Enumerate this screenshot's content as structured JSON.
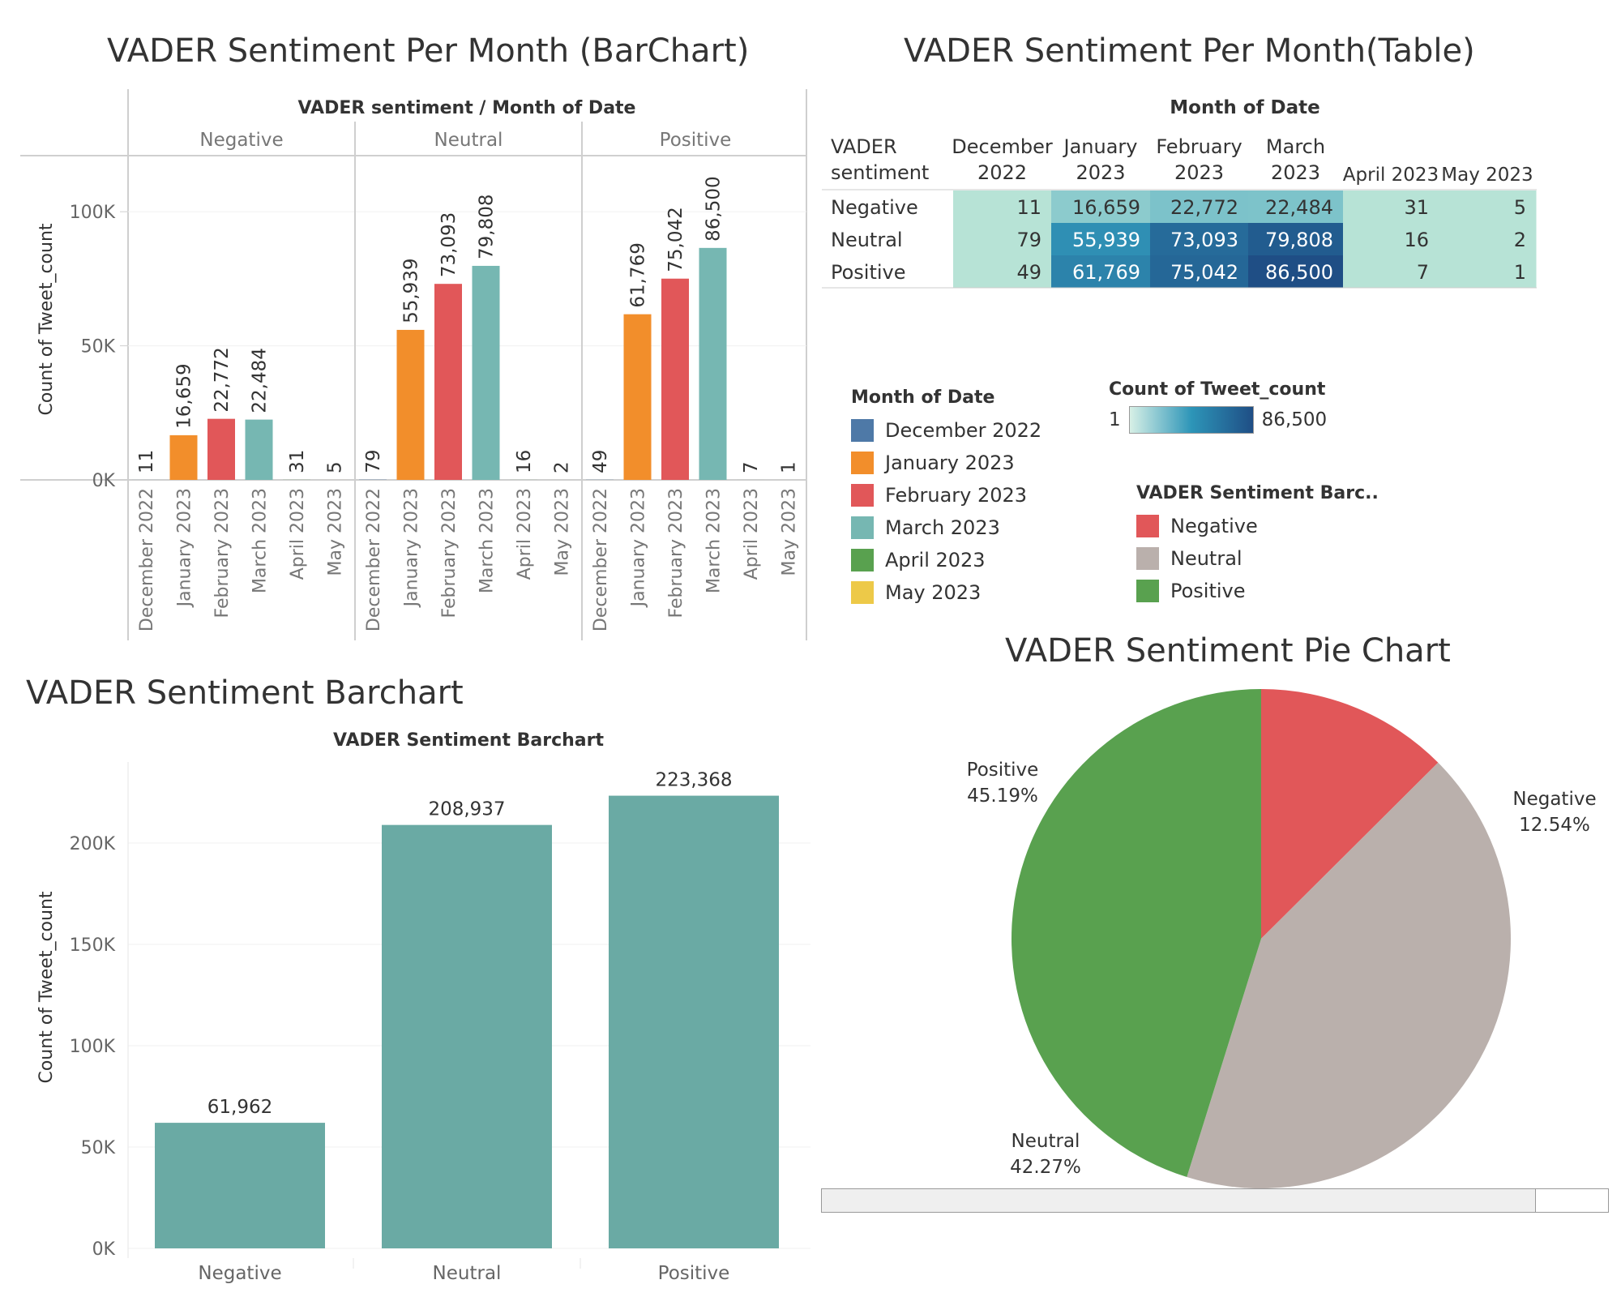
{
  "titles": {
    "monthly_bar": "VADER Sentiment Per Month (BarChart)",
    "monthly_table": "VADER Sentiment Per Month(Table)",
    "total_bar": "VADER Sentiment Barchart",
    "pie": "VADER Sentiment Pie Chart"
  },
  "colors": {
    "December 2022": "#4e79a7",
    "January 2023": "#f28e2b",
    "February 2023": "#e15759",
    "March 2023": "#76b7b2",
    "April 2023": "#59a14f",
    "May 2023": "#edc948",
    "Negative": "#e15759",
    "Neutral": "#bab0ac",
    "Positive": "#59a14f",
    "total_bar": "#6aaaa4",
    "heat_low": "#b7e3d6",
    "heat_high": "#1f4e85"
  },
  "legends": {
    "month_title": "Month of Date",
    "months": [
      "December 2022",
      "January 2023",
      "February 2023",
      "March 2023",
      "April 2023",
      "May 2023"
    ],
    "count_title": "Count of Tweet_count",
    "count_min": "1",
    "count_max": "86,500",
    "sentiment_title": "VADER Sentiment Barc..",
    "sentiments": [
      "Negative",
      "Neutral",
      "Positive"
    ]
  },
  "chart_data": [
    {
      "type": "bar",
      "title": "VADER Sentiment Per Month (BarChart)",
      "header": "VADER sentiment  /  Month of Date",
      "ylabel": "Count of Tweet_count",
      "ylim": [
        0,
        120000
      ],
      "yticks": [
        0,
        50000,
        100000
      ],
      "ytick_labels": [
        "0K",
        "50K",
        "100K"
      ],
      "panels": [
        "Negative",
        "Neutral",
        "Positive"
      ],
      "categories": [
        "December 2022",
        "January 2023",
        "February 2023",
        "March 2023",
        "April 2023",
        "May 2023"
      ],
      "series": [
        {
          "name": "Negative",
          "values": [
            11,
            16659,
            22772,
            22484,
            31,
            5
          ],
          "labels": [
            "11",
            "16,659",
            "22,772",
            "22,484",
            "31",
            "5"
          ]
        },
        {
          "name": "Neutral",
          "values": [
            79,
            55939,
            73093,
            79808,
            16,
            2
          ],
          "labels": [
            "79",
            "55,939",
            "73,093",
            "79,808",
            "16",
            "2"
          ]
        },
        {
          "name": "Positive",
          "values": [
            49,
            61769,
            75042,
            86500,
            7,
            1
          ],
          "labels": [
            "49",
            "61,769",
            "75,042",
            "86,500",
            "7",
            "1"
          ]
        }
      ]
    },
    {
      "type": "table",
      "title": "VADER Sentiment Per Month(Table)",
      "column_group_label": "Month of Date",
      "row_header": [
        "VADER",
        "sentiment"
      ],
      "columns": [
        [
          "December",
          "2022"
        ],
        [
          "January",
          "2023"
        ],
        [
          "February",
          "2023"
        ],
        [
          "March",
          "2023"
        ],
        [
          "April 2023"
        ],
        [
          "May 2023"
        ]
      ],
      "rows": [
        {
          "name": "Negative",
          "values": [
            11,
            16659,
            22772,
            22484,
            31,
            5
          ],
          "labels": [
            "11",
            "16,659",
            "22,772",
            "22,484",
            "31",
            "5"
          ]
        },
        {
          "name": "Neutral",
          "values": [
            79,
            55939,
            73093,
            79808,
            16,
            2
          ],
          "labels": [
            "79",
            "55,939",
            "73,093",
            "79,808",
            "16",
            "2"
          ]
        },
        {
          "name": "Positive",
          "values": [
            49,
            61769,
            75042,
            86500,
            7,
            1
          ],
          "labels": [
            "49",
            "61,769",
            "75,042",
            "86,500",
            "7",
            "1"
          ]
        }
      ]
    },
    {
      "type": "bar",
      "title": "VADER Sentiment Barchart",
      "ylabel": "Count of Tweet_count",
      "ylim": [
        0,
        240000
      ],
      "yticks": [
        0,
        50000,
        100000,
        150000,
        200000
      ],
      "ytick_labels": [
        "0K",
        "50K",
        "100K",
        "150K",
        "200K"
      ],
      "categories": [
        "Negative",
        "Neutral",
        "Positive"
      ],
      "values": [
        61962,
        208937,
        223368
      ],
      "labels": [
        "61,962",
        "208,937",
        "223,368"
      ]
    },
    {
      "type": "pie",
      "title": "VADER Sentiment Pie Chart",
      "categories": [
        "Negative",
        "Neutral",
        "Positive"
      ],
      "values": [
        12.54,
        42.27,
        45.19
      ],
      "labels": [
        "12.54%",
        "42.27%",
        "45.19%"
      ]
    }
  ]
}
